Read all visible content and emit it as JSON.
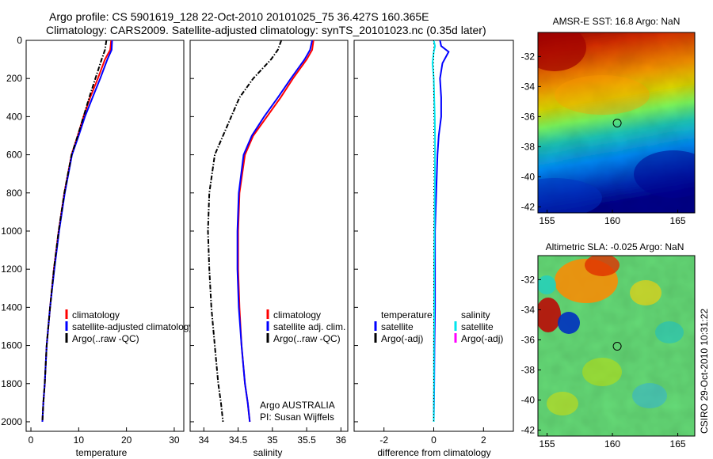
{
  "header": {
    "line1": "Argo profile: CS 5901619_128 22-Oct-2010 20101025_75 36.427S 160.365E",
    "line2": "Climatology: CARS2009. Satellite-adjusted climatology: synTS_20101023.nc (0.35d later)"
  },
  "side_stamp": "CSIRO 29-Oct-2010 10:31:22",
  "colors": {
    "climatology": "#ff0000",
    "satellite": "#0000ff",
    "argo": "#000000",
    "satellite_salinity_diff": "#00e5ee",
    "argo_adj_salinity": "#ff00ff"
  },
  "chart_data": [
    {
      "type": "line",
      "xlabel": "temperature",
      "xlim": [
        -1,
        32
      ],
      "ylim": [
        2050,
        0
      ],
      "xticks": [
        0,
        10,
        20,
        30
      ],
      "yticks": [
        0,
        200,
        400,
        600,
        800,
        1000,
        1200,
        1400,
        1600,
        1800,
        2000
      ],
      "legend": [
        "climatology",
        "satellite-adjusted climatology",
        "Argo(..raw -QC)"
      ],
      "series": [
        {
          "name": "climatology",
          "style": "solid",
          "x": [
            16.8,
            16.6,
            15.5,
            14.0,
            12.4,
            11.0,
            9.8,
            8.5,
            7.0,
            5.8,
            4.8,
            4.0,
            3.3,
            2.9,
            2.6,
            2.4
          ],
          "y": [
            0,
            50,
            100,
            200,
            300,
            400,
            500,
            600,
            800,
            1000,
            1200,
            1400,
            1600,
            1800,
            1900,
            2000
          ]
        },
        {
          "name": "satellite-adjusted climatology",
          "style": "solid",
          "x": [
            17.0,
            16.9,
            16.0,
            14.5,
            12.9,
            11.3,
            10.0,
            8.6,
            7.1,
            5.9,
            4.9,
            4.0,
            3.3,
            2.9,
            2.6,
            2.4
          ],
          "y": [
            0,
            50,
            100,
            200,
            300,
            400,
            500,
            600,
            800,
            1000,
            1200,
            1400,
            1600,
            1800,
            1900,
            2000
          ]
        },
        {
          "name": "Argo(..raw -QC)",
          "style": "dashdot",
          "x": [
            15.8,
            15.5,
            14.8,
            13.5,
            12.2,
            11.0,
            9.8,
            8.5,
            7.0,
            5.8,
            4.8,
            4.0,
            3.3,
            2.9,
            2.6,
            2.4
          ],
          "y": [
            0,
            50,
            100,
            200,
            300,
            400,
            500,
            600,
            800,
            1000,
            1200,
            1400,
            1600,
            1800,
            1900,
            2000
          ]
        }
      ]
    },
    {
      "type": "line",
      "xlabel": "salinity",
      "xlim": [
        33.8,
        36.1
      ],
      "ylim": [
        2050,
        0
      ],
      "xticks": [
        34,
        34.5,
        35,
        35.5,
        36
      ],
      "legend": [
        "climatology",
        "satellite adj. clim.",
        "Argo(..raw -QC)"
      ],
      "annotation": [
        "Argo AUSTRALIA",
        "PI: Susan Wijffels"
      ],
      "series": [
        {
          "name": "climatology",
          "style": "solid",
          "x": [
            35.6,
            35.58,
            35.5,
            35.3,
            35.12,
            34.92,
            34.72,
            34.6,
            34.52,
            34.5,
            34.5,
            34.52,
            34.55,
            34.6,
            34.64,
            34.67
          ],
          "y": [
            0,
            50,
            100,
            200,
            300,
            400,
            500,
            600,
            800,
            1000,
            1200,
            1400,
            1600,
            1800,
            1900,
            2000
          ]
        },
        {
          "name": "satellite adj. clim.",
          "style": "solid",
          "x": [
            35.58,
            35.55,
            35.47,
            35.27,
            35.08,
            34.88,
            34.7,
            34.58,
            34.51,
            34.49,
            34.49,
            34.51,
            34.55,
            34.6,
            34.64,
            34.67
          ],
          "y": [
            0,
            50,
            100,
            200,
            300,
            400,
            500,
            600,
            800,
            1000,
            1200,
            1400,
            1600,
            1800,
            1900,
            2000
          ]
        },
        {
          "name": "Argo(..raw -QC)",
          "style": "dashdot",
          "x": [
            35.13,
            35.08,
            34.98,
            34.72,
            34.52,
            34.4,
            34.28,
            34.16,
            34.08,
            34.06,
            34.08,
            34.11,
            34.16,
            34.21,
            34.25,
            34.28
          ],
          "y": [
            0,
            50,
            100,
            200,
            300,
            400,
            500,
            600,
            800,
            1000,
            1200,
            1400,
            1600,
            1800,
            1900,
            2000
          ]
        }
      ]
    },
    {
      "type": "line",
      "xlabel": "difference from climatology",
      "xlim": [
        -3.2,
        3.2
      ],
      "ylim": [
        2050,
        0
      ],
      "xticks": [
        -2,
        0,
        2
      ],
      "legend_left": [
        "temperature",
        "satellite",
        "Argo(-adj)"
      ],
      "legend_right": [
        "salinity",
        "satellite",
        "Argo(-adj)"
      ],
      "series": [
        {
          "name": "satellite (temperature)",
          "style": "solid",
          "color_key": "satellite",
          "x": [
            0.25,
            0.3,
            0.6,
            0.35,
            0.25,
            0.3,
            0.3,
            0.2,
            0.15,
            0.1,
            0.05,
            0.05,
            0.05,
            0.03,
            0.02,
            0.0
          ],
          "y": [
            0,
            30,
            60,
            120,
            200,
            300,
            400,
            500,
            600,
            800,
            1000,
            1200,
            1400,
            1600,
            1800,
            2000
          ]
        },
        {
          "name": "satellite (salinity)",
          "style": "solid",
          "color_key": "satellite_salinity_diff",
          "x": [
            0.0,
            0.05,
            0.0,
            -0.05,
            0.0,
            0.02,
            0.04,
            0.05,
            0.05,
            0.04,
            0.03,
            0.02,
            0.02,
            0.01,
            0.01,
            0.0
          ],
          "y": [
            0,
            30,
            60,
            120,
            200,
            300,
            400,
            500,
            600,
            800,
            1000,
            1200,
            1400,
            1600,
            1800,
            2000
          ]
        },
        {
          "name": "Argo(-adj) temperature",
          "style": "dotted",
          "color_key": "argo",
          "x": [
            0,
            0,
            0,
            0,
            0
          ],
          "y": [
            0,
            500,
            1000,
            1500,
            2000
          ]
        }
      ]
    },
    {
      "type": "heatmap",
      "title": "AMSR-E SST: 16.8 Argo: NaN",
      "xlim": [
        154.3,
        166.3
      ],
      "ylim": [
        -42.4,
        -30.4
      ],
      "xticks": [
        155,
        160,
        165
      ],
      "yticks": [
        -32,
        -34,
        -36,
        -38,
        -40,
        -42
      ],
      "colormap": "jet",
      "profile_location": {
        "lon": 160.365,
        "lat": -36.427
      }
    },
    {
      "type": "heatmap",
      "title": "Altimetric SLA: -0.025 Argo: NaN",
      "xlim": [
        154.3,
        166.3
      ],
      "ylim": [
        -42.4,
        -30.4
      ],
      "xticks": [
        155,
        160,
        165
      ],
      "yticks": [
        -32,
        -34,
        -36,
        -38,
        -40,
        -42
      ],
      "colormap": "jet",
      "profile_location": {
        "lon": 160.365,
        "lat": -36.427
      }
    }
  ]
}
